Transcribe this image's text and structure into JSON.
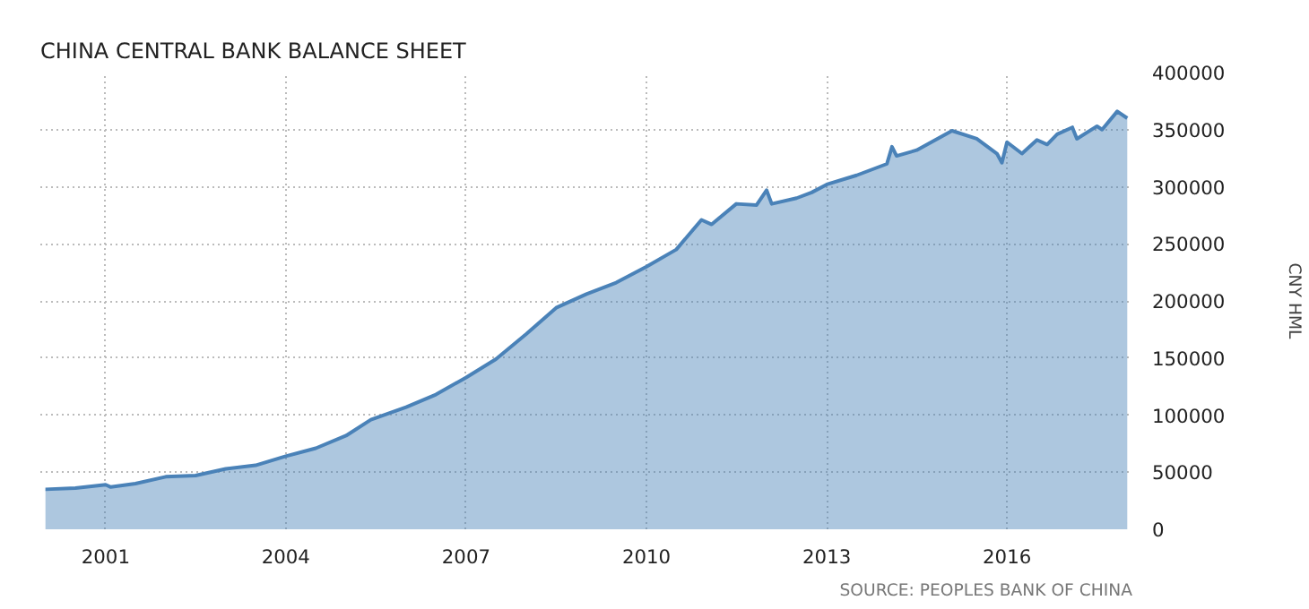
{
  "chart_data": {
    "type": "area",
    "title": "CHINA CENTRAL BANK BALANCE SHEET",
    "ylabel": "CNY HML",
    "annotations": [
      "SOURCE: PEOPLES BANK OF CHINA"
    ],
    "x": [
      "2000-01",
      "2000-07",
      "2001-01",
      "2001-02",
      "2001-07",
      "2002-01",
      "2002-07",
      "2003-01",
      "2003-07",
      "2004-01",
      "2004-07",
      "2005-01",
      "2005-06",
      "2006-01",
      "2006-07",
      "2007-01",
      "2007-07",
      "2008-01",
      "2008-07",
      "2009-01",
      "2009-07",
      "2010-01",
      "2010-07",
      "2010-12",
      "2011-02",
      "2011-07",
      "2011-11",
      "2012-01",
      "2012-02",
      "2012-07",
      "2012-10",
      "2013-01",
      "2013-07",
      "2014-01",
      "2014-02",
      "2014-03",
      "2014-07",
      "2015-02",
      "2015-07",
      "2015-11",
      "2015-12",
      "2016-01",
      "2016-04",
      "2016-07",
      "2016-09",
      "2016-11",
      "2017-02",
      "2017-03",
      "2017-07",
      "2017-08",
      "2017-11",
      "2018-01"
    ],
    "series": [
      {
        "color": "#4a82b8",
        "values": [
          35000,
          36000,
          39000,
          37000,
          40000,
          46000,
          47000,
          53000,
          56000,
          64000,
          71000,
          82000,
          96000,
          107000,
          118000,
          133000,
          149000,
          171000,
          194000,
          206000,
          216000,
          230000,
          245000,
          271000,
          267000,
          285000,
          284000,
          297000,
          285000,
          290000,
          295000,
          302000,
          310000,
          320000,
          335000,
          327000,
          332000,
          349000,
          342000,
          329000,
          321000,
          339000,
          329000,
          341000,
          337000,
          346000,
          352000,
          342000,
          353000,
          350000,
          366000,
          360000
        ]
      }
    ],
    "xlim": [
      "1999-12",
      "2018-02"
    ],
    "ylim": [
      0,
      400000
    ],
    "xticks": [
      "2001",
      "2004",
      "2007",
      "2010",
      "2013",
      "2016"
    ],
    "yticks": [
      0,
      50000,
      100000,
      150000,
      200000,
      250000,
      300000,
      350000,
      400000
    ],
    "grid": true
  }
}
